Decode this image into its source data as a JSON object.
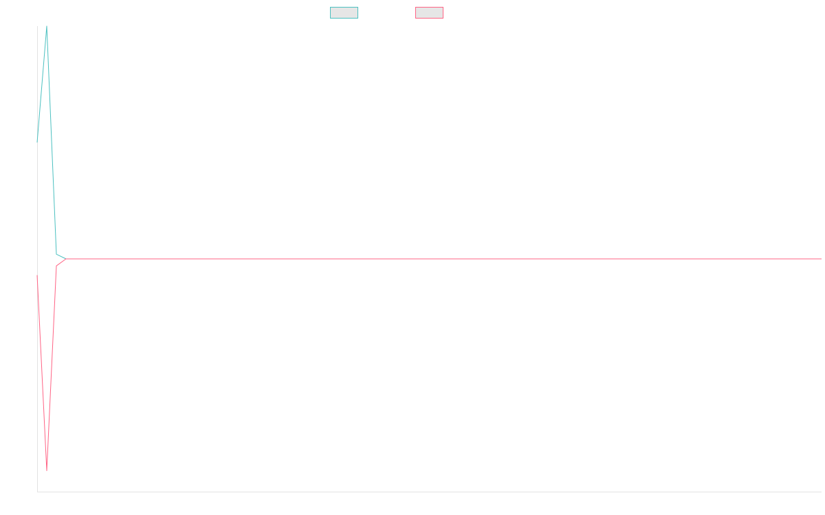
{
  "chart_data": {
    "type": "line",
    "title": "",
    "xlabel": "",
    "ylabel": "",
    "grid": false,
    "legend_position": "top",
    "x": [
      0,
      1,
      2,
      3,
      4,
      5,
      6,
      7,
      8,
      9,
      10,
      11,
      12,
      13,
      14,
      15,
      16,
      17,
      18,
      19,
      20,
      21,
      22,
      23,
      24,
      25,
      26,
      27,
      28,
      29,
      30,
      31,
      32,
      33,
      34,
      35,
      36,
      37,
      38,
      39,
      40,
      41,
      42,
      43,
      44,
      45,
      46,
      47,
      48,
      49,
      50,
      51,
      52,
      53,
      54,
      55,
      56,
      57,
      58,
      59,
      60,
      61,
      62,
      63,
      64,
      65,
      66,
      67,
      68,
      69,
      70,
      71,
      72,
      73,
      74,
      75,
      76,
      77,
      78,
      79,
      80
    ],
    "xlim": [
      0,
      80
    ],
    "ylim": [
      -1,
      1
    ],
    "series": [
      {
        "name": "",
        "color": "#4bc0c0",
        "values": [
          0.5,
          1.0,
          0.02,
          0,
          0,
          0,
          0,
          0,
          0,
          0,
          0,
          0,
          0,
          0,
          0,
          0,
          0,
          0,
          0,
          0,
          0,
          0,
          0,
          0,
          0,
          0,
          0,
          0,
          0,
          0,
          0,
          0,
          0,
          0,
          0,
          0,
          0,
          0,
          0,
          0,
          0,
          0,
          0,
          0,
          0,
          0,
          0,
          0,
          0,
          0,
          0,
          0,
          0,
          0,
          0,
          0,
          0,
          0,
          0,
          0,
          0,
          0,
          0,
          0,
          0,
          0,
          0,
          0,
          0,
          0,
          0,
          0,
          0,
          0,
          0,
          0,
          0,
          0,
          0,
          0,
          0
        ]
      },
      {
        "name": "",
        "color": "#ff6384",
        "values": [
          -0.07,
          -0.91,
          -0.03,
          0,
          0,
          0,
          0,
          0,
          0,
          0,
          0,
          0,
          0,
          0,
          0,
          0,
          0,
          0,
          0,
          0,
          0,
          0,
          0,
          0,
          0,
          0,
          0,
          0,
          0,
          0,
          0,
          0,
          0,
          0,
          0,
          0,
          0,
          0,
          0,
          0,
          0,
          0,
          0,
          0,
          0,
          0,
          0,
          0,
          0,
          0,
          0,
          0,
          0,
          0,
          0,
          0,
          0,
          0,
          0,
          0,
          0,
          0,
          0,
          0,
          0,
          0,
          0,
          0,
          0,
          0,
          0,
          0,
          0,
          0,
          0,
          0,
          0,
          0,
          0,
          0,
          0
        ]
      }
    ]
  }
}
